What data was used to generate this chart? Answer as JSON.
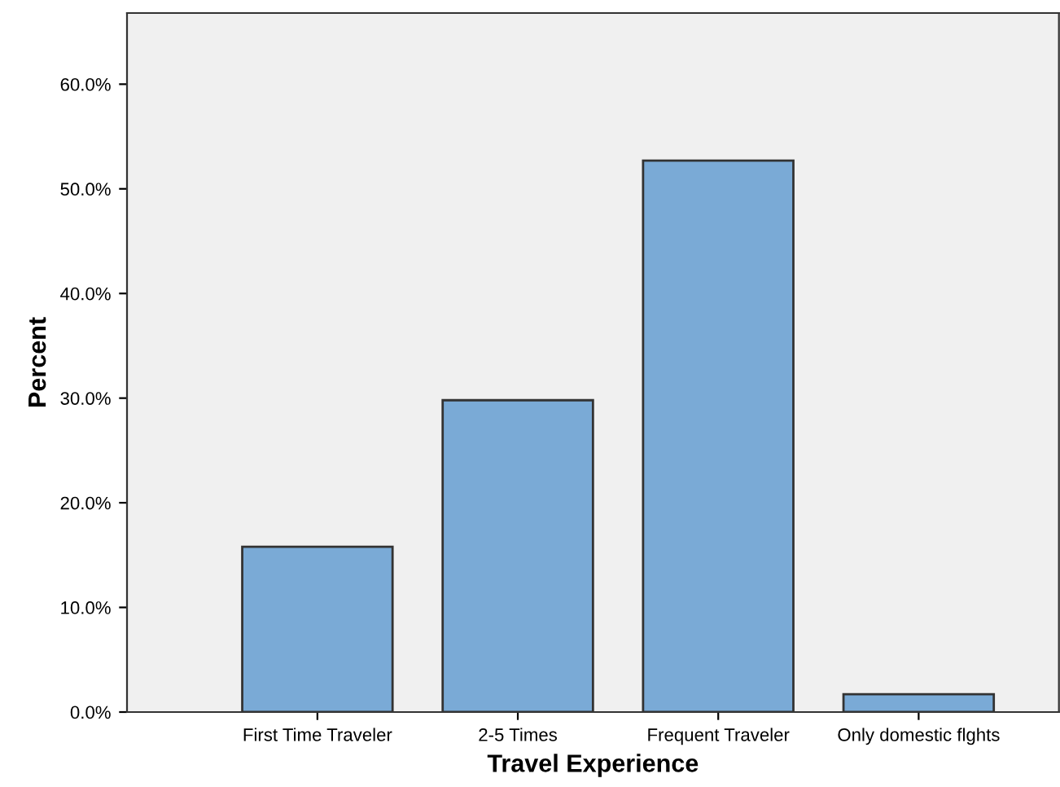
{
  "chart_data": {
    "type": "bar",
    "xlabel": "Travel Experience",
    "ylabel": "Percent",
    "categories": [
      "First Time Traveler",
      "2-5 Times",
      "Frequent Traveler",
      "Only domestic flghts"
    ],
    "values": [
      15.8,
      29.8,
      52.7,
      1.7
    ],
    "color": "#7aaad6",
    "ylim": [
      0,
      66.8
    ],
    "yticks": [
      {
        "value": 0,
        "label": "0.0%"
      },
      {
        "value": 10,
        "label": "10.0%"
      },
      {
        "value": 20,
        "label": "20.0%"
      },
      {
        "value": 30,
        "label": "30.0%"
      },
      {
        "value": 40,
        "label": "40.0%"
      },
      {
        "value": 50,
        "label": "50.0%"
      },
      {
        "value": 60,
        "label": "60.0%"
      }
    ],
    "grid": false,
    "legend": false
  }
}
